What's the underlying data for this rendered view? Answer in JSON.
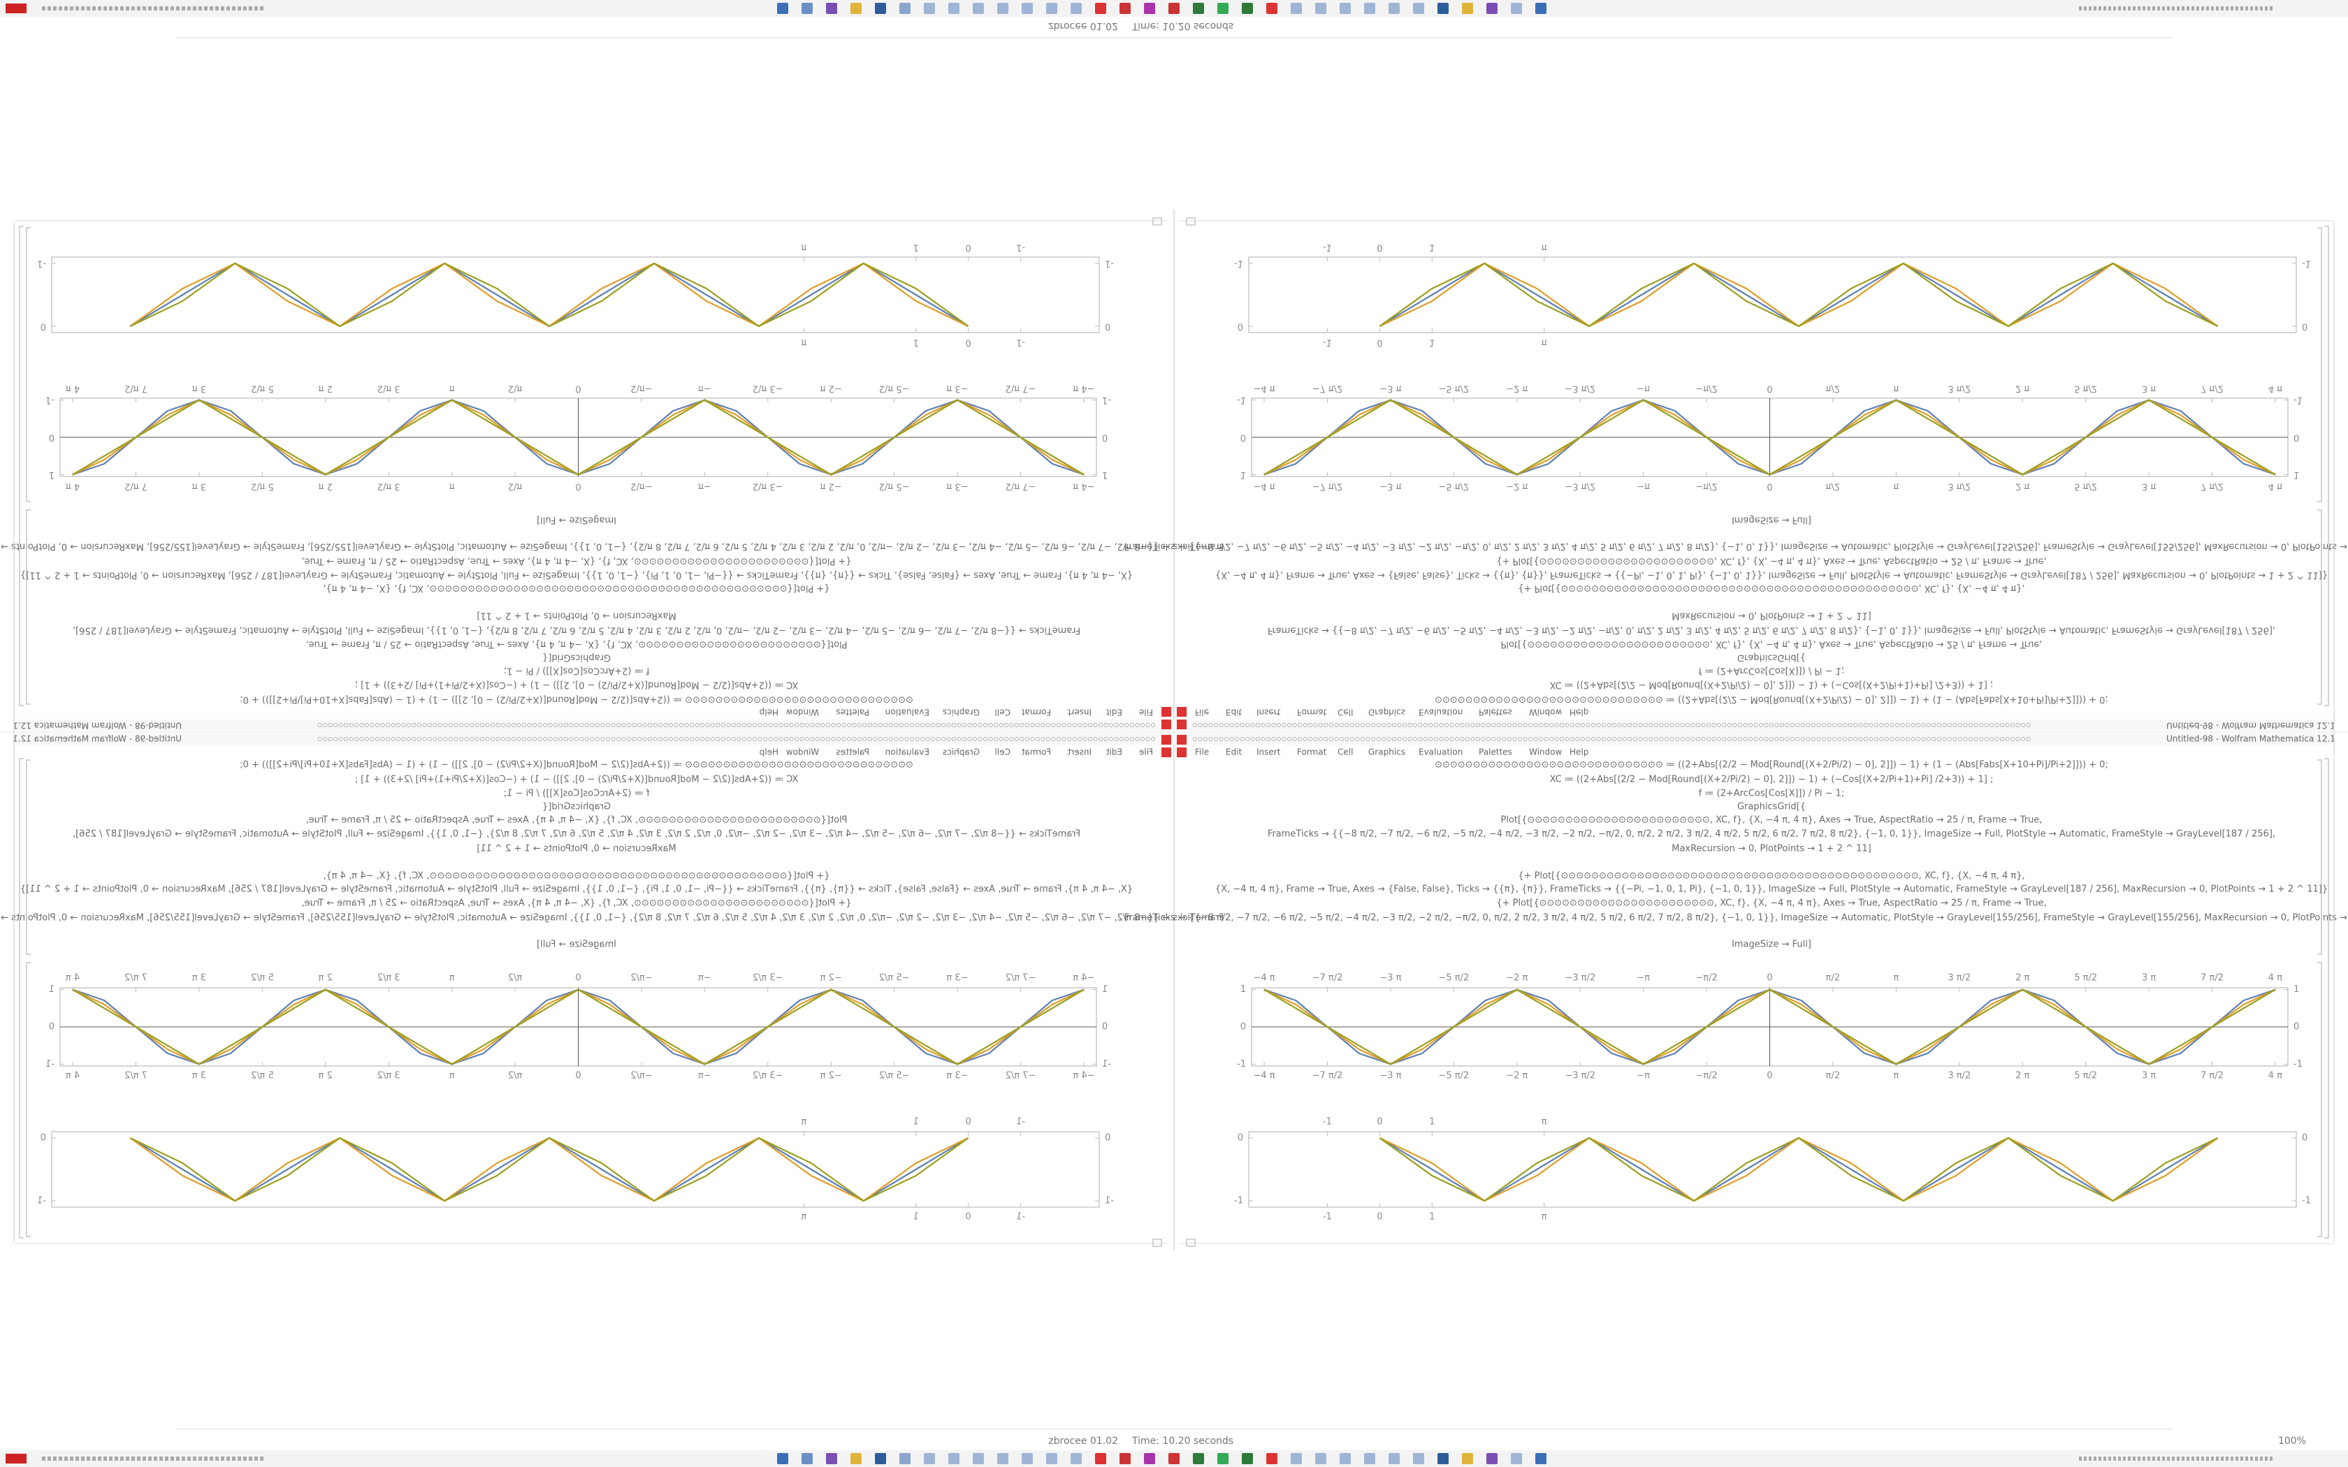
{
  "window": {
    "title": "Untitled-98 - Wolfram Mathematica 12.1",
    "menu": [
      "File",
      "Edit",
      "Insert",
      "Format",
      "Cell",
      "Graphics",
      "Evaluation",
      "Palettes",
      "Window",
      "Help"
    ]
  },
  "code": [
    "⊙⊙⊙⊙⊙⊙⊙⊙⊙⊙⊙⊙⊙⊙⊙⊙⊙⊙⊙⊙⊙⊙⊙⊙⊙⊙⊙⊙⊙⊙ ≔ ((2+Abs[(2/2 − Mod[Round[(X+2/Pi/2) − 0], 2]]) − 1) + (1 − (Abs[Fabs[X+10+Pi]/Pi+2]])) + 0;",
    "XC ≔ ((2+Abs[(2/2 − Mod[Round[(X+2/Pi/2) − 0], 2]]) − 1) + (−Cos[(X+2/Pi+1)+Pi] /2+3)) + 1] ;",
    "f ≔ (2+ArcCos[Cos[X]]) / Pi − 1;",
    "GraphicsGrid[{",
    "Plot[{⊙⊙⊙⊙⊙⊙⊙⊙⊙⊙⊙⊙⊙⊙⊙⊙⊙⊙⊙⊙⊙⊙⊙⊙, XC, f}, {X, −4 π, 4 π}, Axes → True, AspectRatio → 25 / π, Frame → True,",
    "FrameTicks → {{−8 π/2, −7 π/2, −6 π/2, −5 π/2, −4 π/2, −3 π/2, −2 π/2, −π/2, 0, π/2, 2 π/2, 3 π/2, 4 π/2, 5 π/2, 6 π/2, 7 π/2, 8 π/2}, {−1, 0, 1}}, ImageSize → Full, PlotStyle → Automatic, FrameStyle → GrayLevel[187 / 256],",
    "MaxRecursion → 0, PlotPoints → 1 + 2 ^ 11]",
    "{+ Plot[{⊙⊙⊙⊙⊙⊙⊙⊙⊙⊙⊙⊙⊙⊙⊙⊙⊙⊙⊙⊙⊙⊙⊙⊙⊙⊙⊙⊙⊙⊙⊙⊙⊙⊙⊙⊙⊙⊙⊙⊙⊙⊙⊙⊙⊙⊙⊙, XC, f}, {X, −4 π, 4 π},",
    "{X, −4 π, 4 π}, Frame → True, Axes → {False, False}, Ticks → {{π}, {π}}, FrameTicks → {{−Pi, −1, 0, 1, Pi}, {−1, 0, 1}}, ImageSize → Full, PlotStyle → Automatic, FrameStyle → GrayLevel[187 / 256], MaxRecursion → 0, PlotPoints → 1 + 2 ^ 11]}",
    "{+ Plot[{⊙⊙⊙⊙⊙⊙⊙⊙⊙⊙⊙⊙⊙⊙⊙⊙⊙⊙⊙⊙⊙⊙⊙, XC, f}, {X, −4 π, 4 π}, Axes → True, AspectRatio → 25 / π, Frame → True,",
    "FrameTicks → {{−8 π/2, −7 π/2, −6 π/2, −5 π/2, −4 π/2, −3 π/2, −2 π/2, −π/2, 0, π/2, 2 π/2, 3 π/2, 4 π/2, 5 π/2, 6 π/2, 7 π/2, 8 π/2}, {−1, 0, 1}}, ImageSize → Automatic, PlotStyle → GrayLevel[155/256], FrameStyle → GrayLevel[155/256], MaxRecursion → 0, PlotPoints → 1 + 2 ^ 11]}}]",
    "ImageSize → Full]"
  ],
  "status": {
    "file": "zbrocee 01.02",
    "time": "Time: 10.20 seconds",
    "zoom": "100%"
  },
  "chart_data": [
    {
      "type": "line",
      "x": [
        -4,
        -3.75,
        -3.5,
        -3.25,
        -3,
        -2.75,
        -2.5,
        -2.25,
        -2,
        -1.75,
        -1.5,
        -1.25,
        -1,
        -0.75,
        -0.5,
        -0.25,
        0,
        0.25,
        0.5,
        0.75,
        1,
        1.25,
        1.5,
        1.75,
        2,
        2.25,
        2.5,
        2.75,
        3,
        3.25,
        3.5,
        3.75,
        4
      ],
      "series": [
        {
          "color": "#5e81b5",
          "values": [
            1,
            0.71,
            0,
            -0.71,
            -1,
            -0.71,
            0,
            0.71,
            1,
            0.71,
            0,
            -0.71,
            -1,
            -0.71,
            0,
            0.71,
            1,
            0.71,
            0,
            -0.71,
            -1,
            -0.71,
            0,
            0.71,
            1,
            0.71,
            0,
            -0.71,
            -1,
            -0.71,
            0,
            0.71,
            1
          ]
        },
        {
          "color": "#e19c24",
          "values": [
            1,
            0.6,
            0,
            -0.6,
            -1,
            -0.6,
            0,
            0.6,
            1,
            0.6,
            0,
            -0.6,
            -1,
            -0.6,
            0,
            0.6,
            1,
            0.6,
            0,
            -0.6,
            -1,
            -0.6,
            0,
            0.6,
            1,
            0.6,
            0,
            -0.6,
            -1,
            -0.6,
            0,
            0.6,
            1
          ]
        },
        {
          "color": "#9a9f1c",
          "values": [
            1,
            0.5,
            0,
            -0.5,
            -1,
            -0.5,
            0,
            0.5,
            1,
            0.5,
            0,
            -0.5,
            -1,
            -0.5,
            0,
            0.5,
            1,
            0.5,
            0,
            -0.5,
            -1,
            -0.5,
            0,
            0.5,
            1,
            0.5,
            0,
            -0.5,
            -1,
            -0.5,
            0,
            0.5,
            1
          ]
        }
      ],
      "xlim": [
        -4.1,
        4.1
      ],
      "ylim": [
        -1.05,
        1.05
      ],
      "xticks": [
        {
          "value": -4,
          "label": "−4 π"
        },
        {
          "value": -3.5,
          "label": "−7 π/2"
        },
        {
          "value": -3,
          "label": "−3 π"
        },
        {
          "value": -2.5,
          "label": "−5 π/2"
        },
        {
          "value": -2,
          "label": "−2 π"
        },
        {
          "value": -1.5,
          "label": "−3 π/2"
        },
        {
          "value": -1,
          "label": "−π"
        },
        {
          "value": -0.5,
          "label": "−π/2"
        },
        0,
        {
          "value": 0.5,
          "label": "π/2"
        },
        {
          "value": 1,
          "label": "π"
        },
        {
          "value": 1.5,
          "label": "3 π/2"
        },
        {
          "value": 2,
          "label": "2 π"
        },
        {
          "value": 2.5,
          "label": "5 π/2"
        },
        {
          "value": 3,
          "label": "3 π"
        },
        {
          "value": 3.5,
          "label": "7 π/2"
        },
        {
          "value": 4,
          "label": "4 π"
        }
      ],
      "yticks": [
        -1,
        0,
        1
      ],
      "axes": true
    },
    {
      "type": "line",
      "x": [
        0,
        1,
        2,
        3,
        4,
        5,
        6,
        7,
        8,
        9,
        10,
        11,
        12,
        13,
        14,
        15,
        16
      ],
      "series": [
        {
          "color": "#5e81b5",
          "values": [
            0,
            -0.5,
            -1,
            -0.5,
            0,
            -0.5,
            -1,
            -0.5,
            0,
            -0.5,
            -1,
            -0.5,
            0,
            -0.5,
            -1,
            -0.5,
            0
          ]
        },
        {
          "color": "#e19c24",
          "values": [
            0,
            -0.4,
            -1,
            -0.6,
            0,
            -0.4,
            -1,
            -0.6,
            0,
            -0.4,
            -1,
            -0.6,
            0,
            -0.4,
            -1,
            -0.6,
            0
          ]
        },
        {
          "color": "#9a9f1c",
          "values": [
            0,
            -0.6,
            -1,
            -0.4,
            0,
            -0.6,
            -1,
            -0.4,
            0,
            -0.6,
            -1,
            -0.4,
            0,
            -0.6,
            -1,
            -0.4,
            0
          ]
        }
      ],
      "xlim": [
        -2.5,
        17.5
      ],
      "ylim": [
        -1.1,
        0.1
      ],
      "xticks": [
        -1,
        0,
        1,
        {
          "value": 3.14,
          "label": "π"
        }
      ],
      "yticks": [
        0,
        -1
      ],
      "axes": false
    }
  ]
}
